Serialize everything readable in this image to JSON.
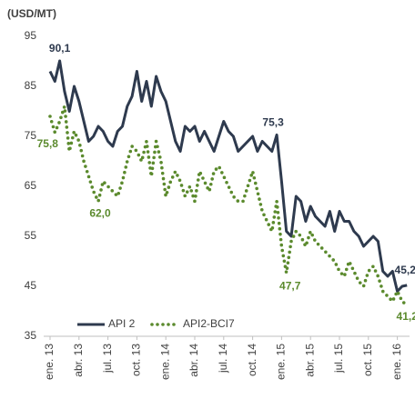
{
  "chart_data": {
    "type": "line",
    "title": "(USD/MT)",
    "categories": [
      "ene. 13",
      null,
      null,
      null,
      null,
      null,
      "abr. 13",
      null,
      null,
      null,
      null,
      null,
      "jul. 13",
      null,
      null,
      null,
      null,
      null,
      "oct. 13",
      null,
      null,
      null,
      null,
      null,
      "ene. 14",
      null,
      null,
      null,
      null,
      null,
      "abr. 14",
      null,
      null,
      null,
      null,
      null,
      "jul. 14",
      null,
      null,
      null,
      null,
      null,
      "oct. 14",
      null,
      null,
      null,
      null,
      null,
      "ene. 15",
      null,
      null,
      null,
      null,
      null,
      "abr. 15",
      null,
      null,
      null,
      null,
      null,
      "jul. 15",
      null,
      null,
      null,
      null,
      null,
      "oct. 15",
      null,
      null,
      null,
      null,
      null,
      "ene. 16",
      null,
      null
    ],
    "series": [
      {
        "name": "API 2",
        "color": "#2e3a4e",
        "style": "solid",
        "values": [
          88,
          86,
          90.1,
          84,
          80,
          85,
          82,
          78,
          74,
          75,
          77,
          76,
          74,
          73,
          76,
          77,
          81,
          83,
          88,
          82,
          86,
          81,
          87,
          84,
          82,
          78,
          74,
          72,
          77,
          76,
          77,
          74,
          76,
          74,
          72,
          75,
          78,
          76,
          75,
          72,
          73,
          74,
          75,
          72,
          74,
          73,
          72,
          75.3,
          66,
          56,
          55,
          63,
          62,
          58,
          61,
          59,
          58,
          57,
          60,
          56,
          60,
          58,
          58,
          56,
          55,
          53,
          54,
          55,
          54,
          48,
          47,
          48,
          44,
          45,
          45.2
        ],
        "value_labels": [
          null,
          null,
          "90,1",
          null,
          null,
          null,
          null,
          null,
          null,
          null,
          null,
          null,
          null,
          null,
          null,
          null,
          null,
          null,
          null,
          null,
          null,
          null,
          null,
          null,
          null,
          null,
          null,
          null,
          null,
          null,
          null,
          null,
          null,
          null,
          null,
          null,
          null,
          null,
          null,
          null,
          null,
          null,
          null,
          null,
          null,
          null,
          null,
          "75,3",
          null,
          null,
          null,
          null,
          null,
          null,
          null,
          null,
          null,
          null,
          null,
          null,
          null,
          null,
          null,
          null,
          null,
          null,
          null,
          null,
          null,
          null,
          null,
          null,
          null,
          null,
          "45,2"
        ]
      },
      {
        "name": "API2-BCI7",
        "color": "#5b8a2d",
        "style": "dotted",
        "values": [
          79,
          75.8,
          78,
          81,
          72,
          76,
          74,
          70,
          67,
          64,
          62.0,
          66,
          65,
          64,
          63,
          66,
          70,
          73,
          72,
          70,
          74,
          67,
          74,
          70,
          63,
          66,
          68,
          66,
          63,
          65,
          62,
          68,
          66,
          64,
          68,
          69,
          67,
          65,
          63,
          62,
          62,
          65,
          68,
          64,
          60,
          58,
          56,
          62,
          53,
          47.7,
          54,
          56,
          55,
          53,
          56,
          54,
          53,
          52,
          51,
          50,
          48,
          47,
          50,
          48,
          46,
          45,
          48,
          49,
          47,
          44,
          43,
          42,
          44,
          42,
          41.2
        ],
        "value_labels": [
          null,
          "75,8",
          null,
          null,
          null,
          null,
          null,
          null,
          null,
          null,
          "62,0",
          null,
          null,
          null,
          null,
          null,
          null,
          null,
          null,
          null,
          null,
          null,
          null,
          null,
          null,
          null,
          null,
          null,
          null,
          null,
          null,
          null,
          null,
          null,
          null,
          null,
          null,
          null,
          null,
          null,
          null,
          null,
          null,
          null,
          null,
          null,
          null,
          null,
          null,
          "47,7",
          null,
          null,
          null,
          null,
          null,
          null,
          null,
          null,
          null,
          null,
          null,
          null,
          null,
          null,
          null,
          null,
          null,
          null,
          null,
          null,
          null,
          null,
          null,
          null,
          "41,2"
        ]
      }
    ],
    "ylim": [
      35,
      95
    ],
    "yticks": [
      35,
      45,
      55,
      65,
      75,
      85,
      95
    ],
    "grid": false,
    "legend": "bottom-left"
  }
}
